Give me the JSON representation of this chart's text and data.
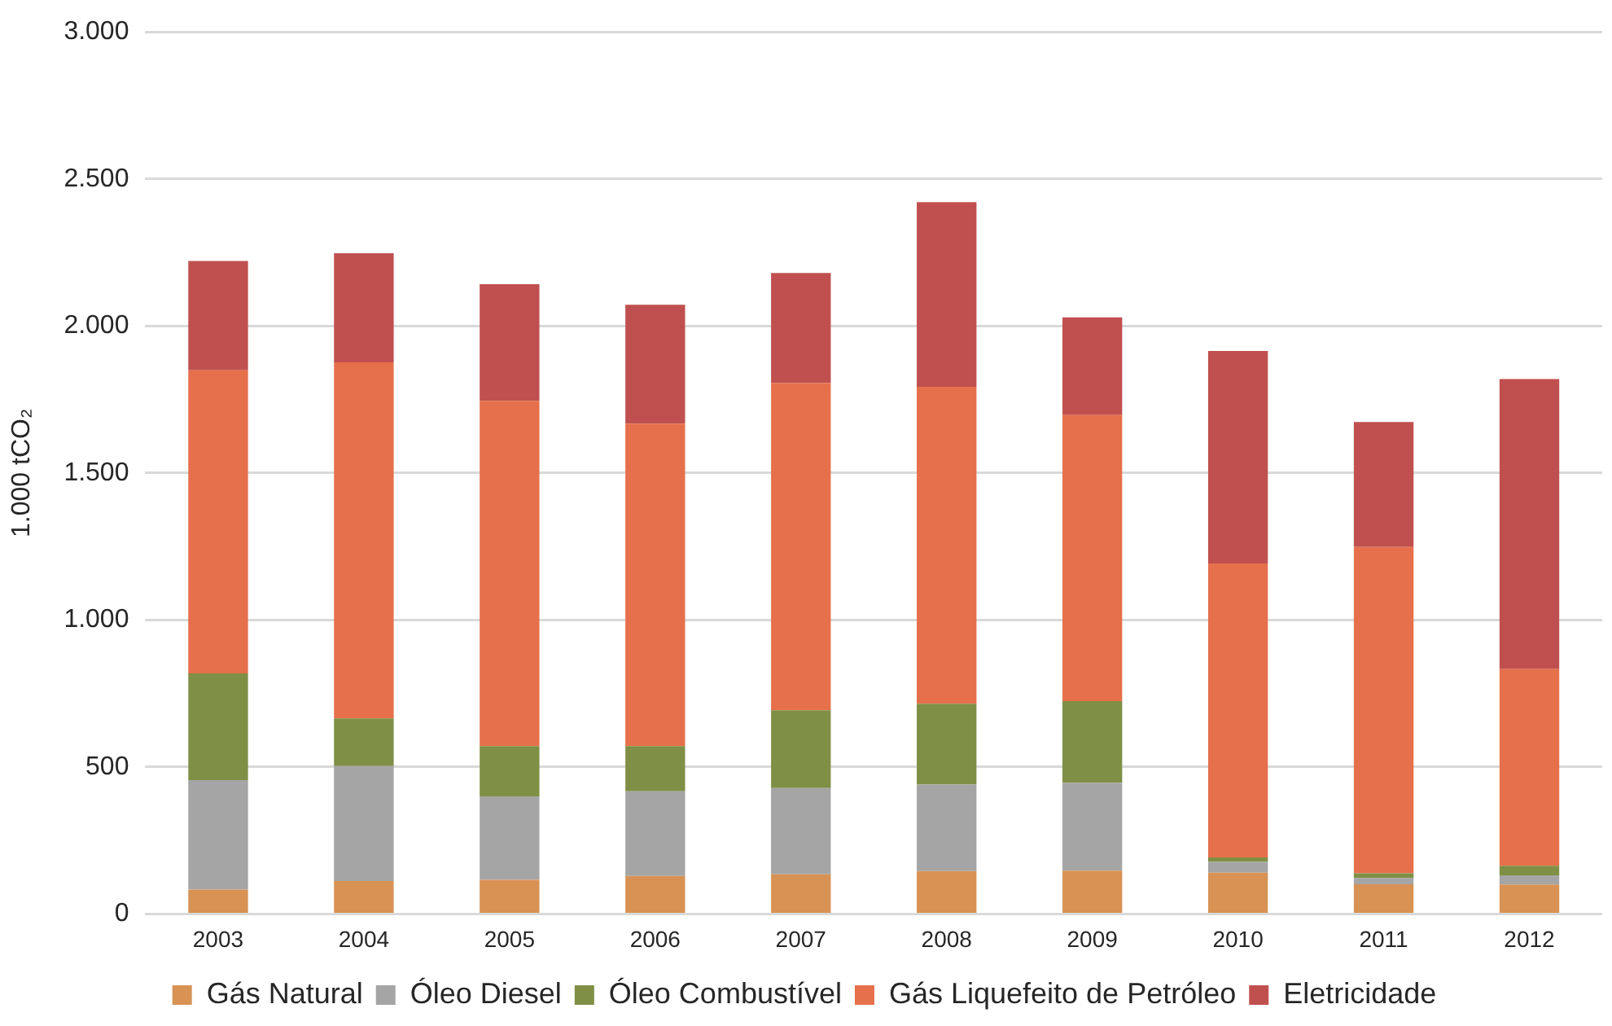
{
  "chart_data": {
    "type": "bar",
    "stacked": true,
    "ylabel": "1.000 tCO₂",
    "categories": [
      "2003",
      "2004",
      "2005",
      "2006",
      "2007",
      "2008",
      "2009",
      "2010",
      "2011",
      "2012"
    ],
    "series": [
      {
        "name": "Gás Natural",
        "color": "#d89254",
        "values": [
          83,
          112,
          116,
          129,
          135,
          146,
          147,
          140,
          101,
          100
        ]
      },
      {
        "name": "Óleo Diesel",
        "color": "#a5a5a5",
        "values": [
          372,
          391,
          284,
          288,
          293,
          294,
          299,
          37,
          21,
          31
        ]
      },
      {
        "name": "Óleo Combustível",
        "color": "#7f8f45",
        "values": [
          363,
          162,
          171,
          154,
          265,
          275,
          278,
          15,
          16,
          33
        ]
      },
      {
        "name": "Gás Liquefeito de Petróleo",
        "color": "#e6704b",
        "values": [
          1031,
          1211,
          1174,
          1097,
          1113,
          1078,
          973,
          1000,
          1110,
          669
        ]
      },
      {
        "name": "Eletricidade",
        "color": "#c0504f",
        "values": [
          372,
          371,
          397,
          404,
          374,
          628,
          332,
          723,
          425,
          986
        ]
      }
    ],
    "ylim": [
      0,
      3000
    ],
    "yticks": [
      {
        "value": 0,
        "label": "0"
      },
      {
        "value": 500,
        "label": "500"
      },
      {
        "value": 1000,
        "label": "1.000"
      },
      {
        "value": 1500,
        "label": "1.500"
      },
      {
        "value": 2000,
        "label": "2.000"
      },
      {
        "value": 2500,
        "label": "2.500"
      },
      {
        "value": 3000,
        "label": "3.000"
      }
    ],
    "grid": "y",
    "legend": "bottom"
  }
}
